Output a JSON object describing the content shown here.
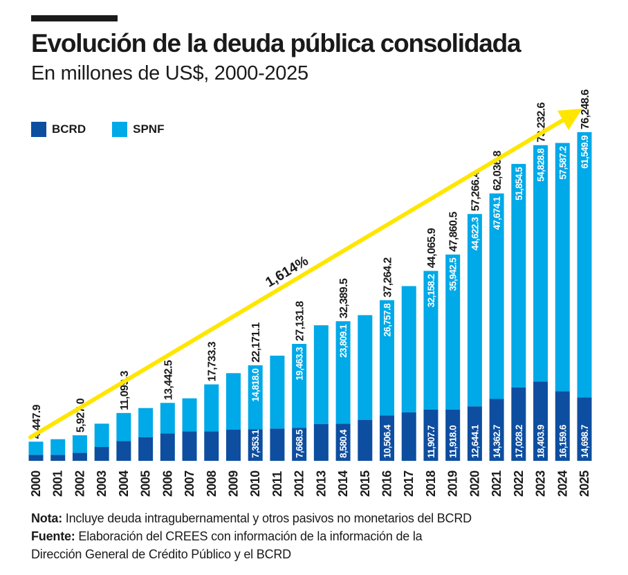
{
  "header": {
    "title": "Evolución de la deuda pública consolidada",
    "subtitle": "En millones de US$, 2000-2025"
  },
  "legend": [
    {
      "name": "BCRD",
      "color": "#0d4ea0"
    },
    {
      "name": "SPNF",
      "color": "#00a9e8"
    }
  ],
  "annotation": {
    "text": "1,614%",
    "arrow_color": "#ffe600"
  },
  "notes": {
    "nota_label": "Nota:",
    "nota_text": " Incluye deuda intragubernamental y otros pasivos no monetarios del BCRD",
    "fuente_label": "Fuente:",
    "fuente_text": " Elaboración del CREES con información de la información de la",
    "fuente_text2": "Dirección General de Crédito Público y el BCRD"
  },
  "chart_data": {
    "type": "bar",
    "stacked": true,
    "title": "Evolución de la deuda pública consolidada",
    "subtitle": "En millones de US$, 2000-2025",
    "categories": [
      "2000",
      "2001",
      "2002",
      "2003",
      "2004",
      "2005",
      "2006",
      "2007",
      "2008",
      "2009",
      "2010",
      "2011",
      "2012",
      "2013",
      "2014",
      "2015",
      "2016",
      "2017",
      "2018",
      "2019",
      "2020",
      "2021",
      "2022",
      "2023",
      "2024",
      "2025"
    ],
    "series": [
      {
        "name": "BCRD",
        "color": "#0d4ea0",
        "values": [
          1400,
          1400,
          1880,
          3210,
          4600,
          5460,
          6370,
          6850,
          6850,
          7220,
          7353.1,
          7500,
          7668.5,
          8510,
          8580.4,
          9470,
          10506.4,
          11250,
          11907.7,
          11918.0,
          12644.1,
          14362.7,
          17028.2,
          18403.9,
          16159.6,
          14698.7
        ],
        "labels": [
          null,
          null,
          null,
          null,
          null,
          null,
          null,
          null,
          null,
          null,
          "7,353.1",
          null,
          "7,668.5",
          null,
          "8,580.4",
          null,
          "10,506.4",
          null,
          "11,907.7",
          "11,918.0",
          "12,644.1",
          "14,362.7",
          "17,028.2",
          "18,403.9",
          "16,159.6",
          "14,698.7"
        ]
      },
      {
        "name": "SPNF",
        "color": "#00a9e8",
        "values": [
          3047.9,
          3620,
          4047,
          5410,
          6499.3,
          6790,
          7072.5,
          7650,
          10883.3,
          13120,
          14818.0,
          16900,
          19463.3,
          22940,
          23809.1,
          24330,
          26757.8,
          29290,
          32158.2,
          35942.5,
          44622.3,
          47674.1,
          51854.5,
          54828.8,
          57587.2,
          61549.9
        ],
        "labels": [
          null,
          null,
          null,
          null,
          null,
          null,
          null,
          null,
          null,
          null,
          "14,818.0",
          null,
          "19,463.3",
          null,
          "23,809.1",
          null,
          "26,757.8",
          null,
          "32,158.2",
          "35,942.5",
          "44,622.3",
          "47,674.1",
          "51,854.5",
          "54,828.8",
          "57,587.2",
          "61,549.9"
        ]
      }
    ],
    "total_labels": [
      "4,447.9",
      null,
      "5,927.0",
      null,
      "11,099.3",
      null,
      "13,442.5",
      null,
      "17,733.3",
      null,
      "22,171.1",
      null,
      "27,131.8",
      null,
      "32,389.5",
      null,
      "37,264.2",
      null,
      "44,065.9",
      "47,860.5",
      "57,266.4",
      "62,036.8",
      null,
      "73,232.6",
      null,
      "76,248.6"
    ],
    "ylim": [
      0,
      80000
    ],
    "xlabel": "",
    "ylabel": "",
    "grid": false,
    "legend_position": "top-left"
  }
}
